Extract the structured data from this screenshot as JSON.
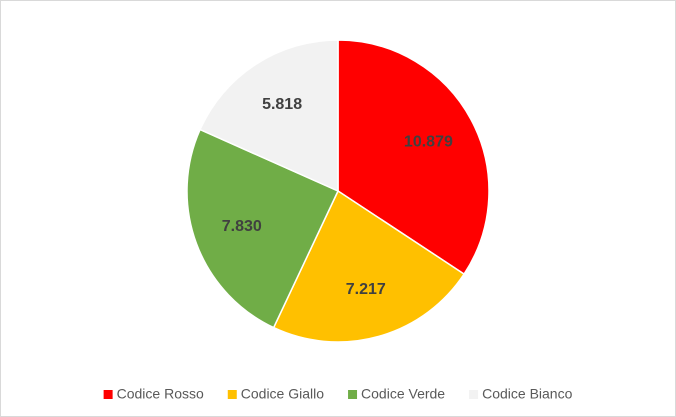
{
  "chart_data": {
    "type": "pie",
    "categories": [
      "Codice Rosso",
      "Codice Giallo",
      "Codice Verde",
      "Codice Bianco"
    ],
    "values": [
      10879,
      7217,
      7830,
      5818
    ],
    "value_labels": [
      "10.879",
      "7.217",
      "7.830",
      "5.818"
    ],
    "colors": [
      "#ff0000",
      "#ffc000",
      "#70ad47",
      "#f2f2f2"
    ],
    "legend": "bottom"
  }
}
